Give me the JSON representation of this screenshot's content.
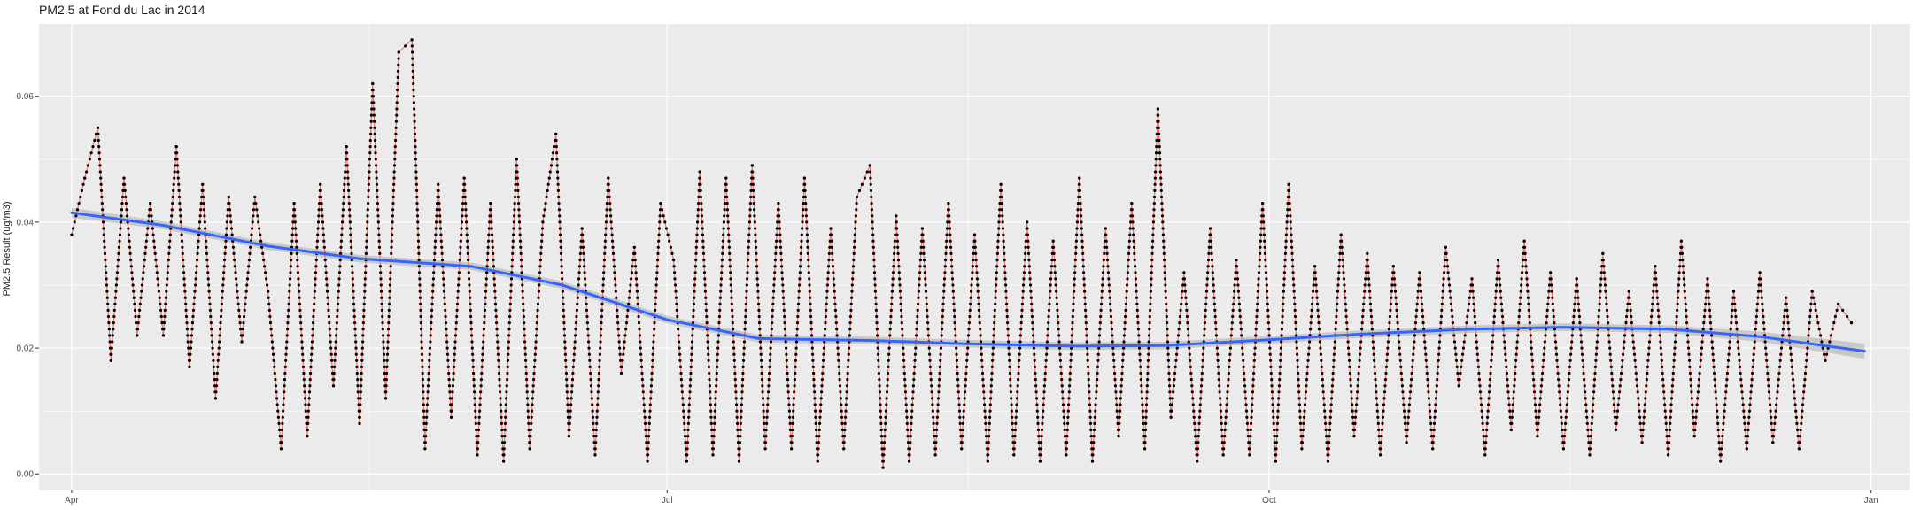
{
  "chart_data": {
    "type": "scatter",
    "title": "PM2.5 at Fond du Lac in 2014",
    "xlabel": "",
    "ylabel": "PM2.5 Result (ug/m3)",
    "xlim": [
      "2014-03-27",
      "2015-01-07"
    ],
    "ylim": [
      -0.0025,
      0.0715
    ],
    "x_ticks": [
      {
        "date": "2014-04-01",
        "label": "Apr"
      },
      {
        "date": "2014-07-01",
        "label": "Jul"
      },
      {
        "date": "2014-10-01",
        "label": "Oct"
      },
      {
        "date": "2015-01-01",
        "label": "Jan"
      }
    ],
    "y_ticks": [
      {
        "value": 0.0,
        "label": "0.00"
      },
      {
        "value": 0.02,
        "label": "0.02"
      },
      {
        "value": 0.04,
        "label": "0.04"
      },
      {
        "value": 0.06,
        "label": "0.06"
      }
    ],
    "grid": true,
    "legend": "none",
    "point_resolution": 0.001,
    "series": [
      {
        "type": "line",
        "color": "#f8766d",
        "line_width": 1.2,
        "x": [
          "2014-04-01",
          "2014-04-03",
          "2014-04-05",
          "2014-04-07",
          "2014-04-09",
          "2014-04-11",
          "2014-04-13",
          "2014-04-15",
          "2014-04-17",
          "2014-04-19",
          "2014-04-21",
          "2014-04-23",
          "2014-04-25",
          "2014-04-27",
          "2014-04-29",
          "2014-05-01",
          "2014-05-03",
          "2014-05-05",
          "2014-05-07",
          "2014-05-09",
          "2014-05-11",
          "2014-05-13",
          "2014-05-15",
          "2014-05-17",
          "2014-05-19",
          "2014-05-21",
          "2014-05-23",
          "2014-05-25",
          "2014-05-27",
          "2014-05-29",
          "2014-05-31",
          "2014-06-02",
          "2014-06-04",
          "2014-06-06",
          "2014-06-08",
          "2014-06-10",
          "2014-06-12",
          "2014-06-14",
          "2014-06-16",
          "2014-06-18",
          "2014-06-20",
          "2014-06-22",
          "2014-06-24",
          "2014-06-26",
          "2014-06-28",
          "2014-06-30",
          "2014-07-02",
          "2014-07-04",
          "2014-07-06",
          "2014-07-08",
          "2014-07-10",
          "2014-07-12",
          "2014-07-14",
          "2014-07-16",
          "2014-07-18",
          "2014-07-20",
          "2014-07-22",
          "2014-07-24",
          "2014-07-26",
          "2014-07-28",
          "2014-07-30",
          "2014-08-01",
          "2014-08-03",
          "2014-08-05",
          "2014-08-07",
          "2014-08-09",
          "2014-08-11",
          "2014-08-13",
          "2014-08-15",
          "2014-08-17",
          "2014-08-19",
          "2014-08-21",
          "2014-08-23",
          "2014-08-25",
          "2014-08-27",
          "2014-08-29",
          "2014-08-31",
          "2014-09-02",
          "2014-09-04",
          "2014-09-06",
          "2014-09-08",
          "2014-09-10",
          "2014-09-12",
          "2014-09-14",
          "2014-09-16",
          "2014-09-18",
          "2014-09-20",
          "2014-09-22",
          "2014-09-24",
          "2014-09-26",
          "2014-09-28",
          "2014-09-30",
          "2014-10-02",
          "2014-10-04",
          "2014-10-06",
          "2014-10-08",
          "2014-10-10",
          "2014-10-12",
          "2014-10-14",
          "2014-10-16",
          "2014-10-18",
          "2014-10-20",
          "2014-10-22",
          "2014-10-24",
          "2014-10-26",
          "2014-10-28",
          "2014-10-30",
          "2014-11-01",
          "2014-11-03",
          "2014-11-05",
          "2014-11-07",
          "2014-11-09",
          "2014-11-11",
          "2014-11-13",
          "2014-11-15",
          "2014-11-17",
          "2014-11-19",
          "2014-11-21",
          "2014-11-23",
          "2014-11-25",
          "2014-11-27",
          "2014-11-29",
          "2014-12-01",
          "2014-12-03",
          "2014-12-05",
          "2014-12-07",
          "2014-12-09",
          "2014-12-11",
          "2014-12-13",
          "2014-12-15",
          "2014-12-17",
          "2014-12-19",
          "2014-12-21",
          "2014-12-23",
          "2014-12-25",
          "2014-12-27",
          "2014-12-29"
        ],
        "y": [
          0.038,
          0.047,
          0.055,
          0.018,
          0.047,
          0.022,
          0.043,
          0.022,
          0.052,
          0.017,
          0.046,
          0.012,
          0.044,
          0.021,
          0.044,
          0.029,
          0.004,
          0.043,
          0.006,
          0.046,
          0.014,
          0.052,
          0.008,
          0.062,
          0.012,
          0.067,
          0.069,
          0.004,
          0.046,
          0.009,
          0.047,
          0.003,
          0.043,
          0.002,
          0.05,
          0.004,
          0.04,
          0.054,
          0.006,
          0.039,
          0.003,
          0.047,
          0.016,
          0.036,
          0.002,
          0.043,
          0.034,
          0.002,
          0.048,
          0.003,
          0.047,
          0.002,
          0.049,
          0.004,
          0.043,
          0.004,
          0.047,
          0.002,
          0.039,
          0.004,
          0.044,
          0.049,
          0.001,
          0.041,
          0.002,
          0.039,
          0.003,
          0.043,
          0.004,
          0.038,
          0.002,
          0.046,
          0.003,
          0.04,
          0.002,
          0.037,
          0.003,
          0.047,
          0.002,
          0.039,
          0.006,
          0.043,
          0.004,
          0.058,
          0.009,
          0.032,
          0.002,
          0.039,
          0.003,
          0.034,
          0.003,
          0.043,
          0.002,
          0.046,
          0.004,
          0.033,
          0.002,
          0.038,
          0.006,
          0.035,
          0.003,
          0.033,
          0.005,
          0.032,
          0.004,
          0.036,
          0.014,
          0.031,
          0.003,
          0.034,
          0.007,
          0.037,
          0.006,
          0.032,
          0.004,
          0.031,
          0.003,
          0.035,
          0.007,
          0.029,
          0.005,
          0.033,
          0.003,
          0.037,
          0.006,
          0.031,
          0.002,
          0.029,
          0.004,
          0.032,
          0.005,
          0.028,
          0.004,
          0.029,
          0.018,
          0.027,
          0.024
        ]
      },
      {
        "type": "smooth",
        "color": "#3366ff",
        "band_color": "#b3b3b3",
        "line_width": 3,
        "x": [
          "2014-04-01",
          "2014-04-15",
          "2014-05-01",
          "2014-05-15",
          "2014-06-01",
          "2014-06-15",
          "2014-07-01",
          "2014-07-15",
          "2014-08-01",
          "2014-08-15",
          "2014-09-01",
          "2014-09-15",
          "2014-10-01",
          "2014-10-15",
          "2014-11-01",
          "2014-11-15",
          "2014-12-01",
          "2014-12-15",
          "2014-12-31"
        ],
        "y": [
          0.0415,
          0.0395,
          0.0362,
          0.0342,
          0.033,
          0.03,
          0.0245,
          0.0215,
          0.0212,
          0.0207,
          0.0203,
          0.0204,
          0.0213,
          0.0222,
          0.023,
          0.0233,
          0.023,
          0.0218,
          0.0195
        ],
        "band": [
          0.0008,
          0.0006,
          0.0006,
          0.0006,
          0.0006,
          0.0006,
          0.0006,
          0.0006,
          0.0006,
          0.0006,
          0.0006,
          0.0006,
          0.0006,
          0.0006,
          0.0006,
          0.0006,
          0.0006,
          0.0008,
          0.0012
        ]
      }
    ]
  }
}
